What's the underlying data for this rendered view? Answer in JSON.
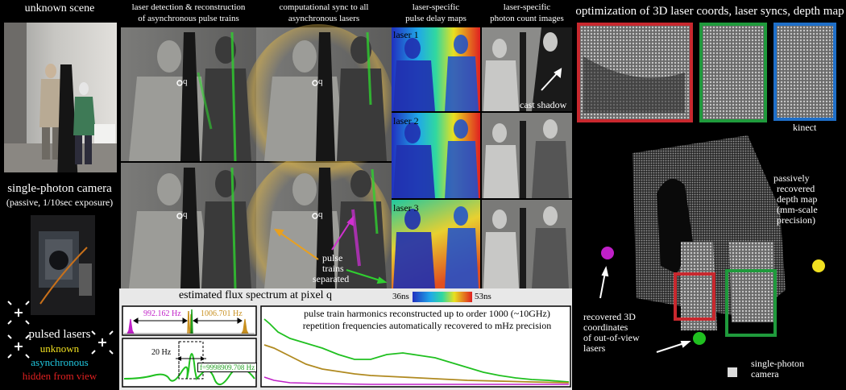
{
  "left": {
    "scene_title": "unknown scene",
    "camera_title": "single-photon camera",
    "camera_sub": "(passive, 1/10sec exposure)",
    "lasers_title": "pulsed lasers",
    "legend_unknown": "unknown",
    "legend_async": "asynchronous",
    "legend_hidden": "hidden from view"
  },
  "cols": {
    "detect_title_1": "laser detection & reconstruction",
    "detect_title_2": "of asynchronous pulse trains",
    "sync_title_1": "computational sync to all",
    "sync_title_2": "asynchronous lasers",
    "delay_title_1": "laser-specific",
    "delay_title_2": "pulse delay maps",
    "count_title_1": "laser-specific",
    "count_title_2": "photon count images"
  },
  "annotations": {
    "q1": "q",
    "q2": "q",
    "q3": "q",
    "q4": "q",
    "pulse_1": "pulse",
    "pulse_2": "trains",
    "pulse_3": "separated",
    "laser1": "laser 1",
    "laser2": "laser 2",
    "laser3": "laser 3",
    "cast_shadow": "cast shadow",
    "cbar_min": "36ns",
    "cbar_max": "53ns"
  },
  "spectrum": {
    "title": "estimated flux spectrum at pixel q",
    "f1": "992.162 Hz",
    "f2": "1006.701 Hz",
    "delta": "20 Hz",
    "fq": "f=9998909.708 Hz",
    "note_1": "pulse train harmonics reconstructed up to order 1000 (~10GHz)",
    "note_2": "repetition frequencies automatically recovered to mHz precision"
  },
  "right": {
    "title": "optimization of 3D laser coords, laser syncs, depth map",
    "kinect": "kinect",
    "depth_1": "passively",
    "depth_2": "recovered",
    "depth_3": "depth map",
    "depth_4": "(mm-scale",
    "depth_5": "precision)",
    "coords_1": "recovered 3D",
    "coords_2": "coordinates",
    "coords_3": "of out-of-view",
    "coords_4": "lasers",
    "spc_1": "single-photon",
    "spc_2": "camera"
  },
  "colors": {
    "magenta": "#c020c8",
    "orange": "#c89020",
    "green": "#20c020",
    "yellow": "#f0e020",
    "cyan": "#20c8e0",
    "red": "#e02020",
    "box_red": "#c8282e",
    "box_green": "#1f9a3c",
    "box_blue": "#1f6fc8"
  }
}
